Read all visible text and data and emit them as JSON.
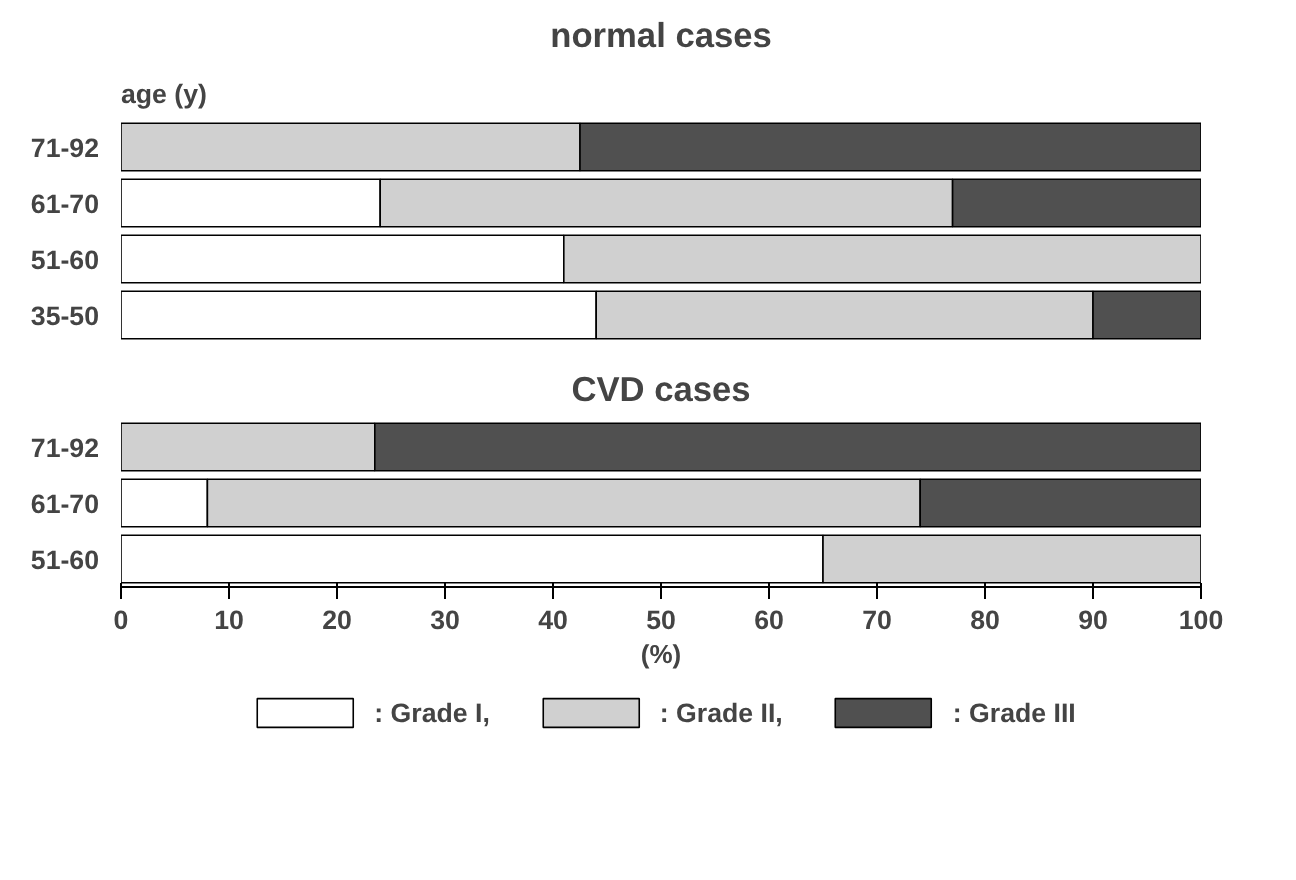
{
  "chart_data": [
    {
      "type": "bar",
      "orientation": "horizontal",
      "stacked": true,
      "title": "normal cases",
      "ylabel": "age (y)",
      "categories": [
        "71-92",
        "61-70",
        "51-60",
        "35-50"
      ],
      "series": [
        {
          "color": "#ffffff",
          "values": [
            null,
            24,
            41,
            44
          ]
        },
        {
          "color": "#d0d0d0",
          "values": [
            42.5,
            53,
            59,
            46
          ]
        },
        {
          "color": "#505050",
          "values": [
            57.5,
            23,
            null,
            10
          ]
        }
      ],
      "xlim": [
        0,
        100
      ],
      "xticks": [
        0,
        10,
        20,
        30,
        40,
        50,
        60,
        70,
        80,
        90,
        100
      ],
      "tick_labels": "y",
      "grid": false
    },
    {
      "type": "bar",
      "orientation": "horizontal",
      "stacked": true,
      "title": "CVD cases",
      "xlabel": "(%)",
      "categories": [
        "71-92",
        "61-70",
        "51-60"
      ],
      "series": [
        {
          "name": ": Grade I,",
          "color": "#ffffff",
          "values": [
            null,
            8,
            65
          ]
        },
        {
          "name": ": Grade II,",
          "color": "#d0d0d0",
          "values": [
            23.5,
            66,
            35
          ]
        },
        {
          "name": ": Grade III",
          "color": "#505050",
          "values": [
            76.5,
            26,
            null
          ]
        }
      ],
      "xlim": [
        0,
        100
      ],
      "xticks": [
        0,
        10,
        20,
        30,
        40,
        50,
        60,
        70,
        80,
        90,
        100
      ],
      "grid": false,
      "legend": "bottom"
    }
  ]
}
